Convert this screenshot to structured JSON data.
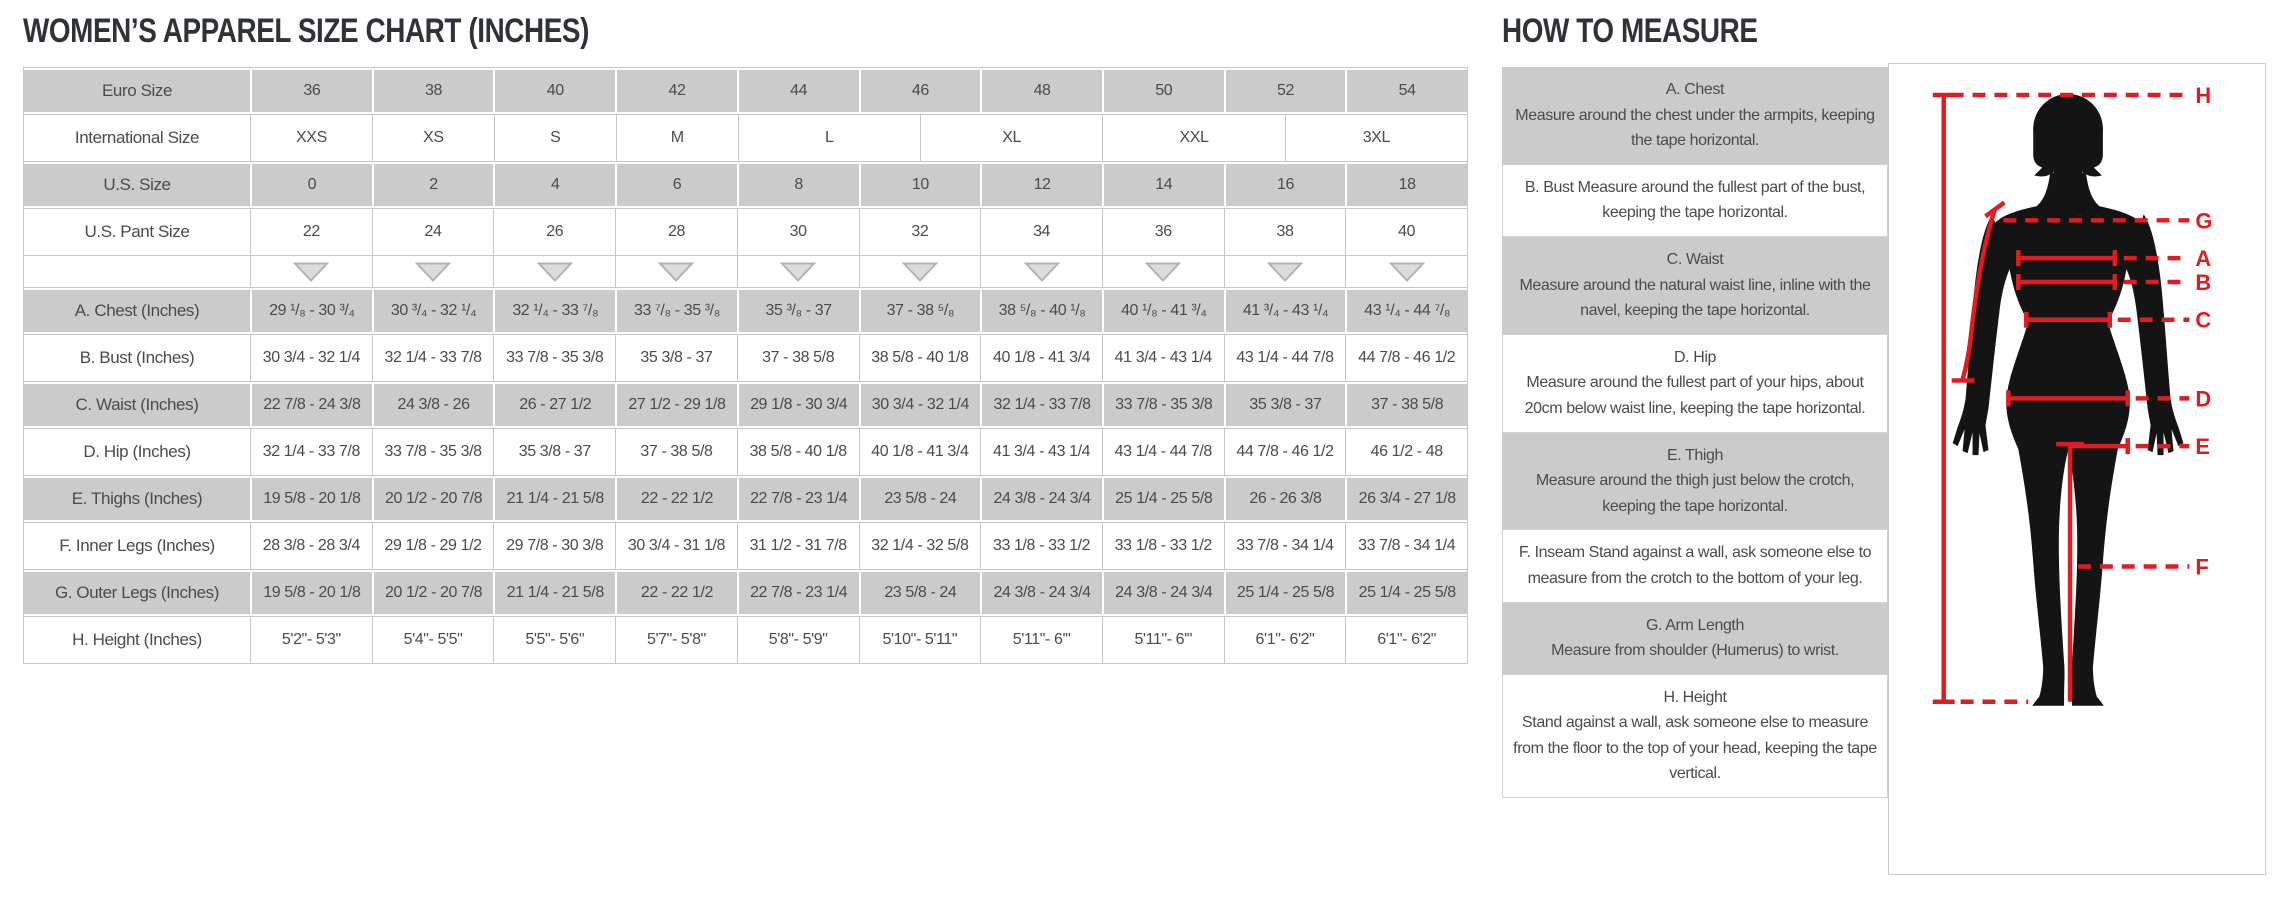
{
  "colors": {
    "row_gray": "#cbcbcb",
    "border_gray": "#c7c7c7",
    "accent_red": "#e01c23",
    "silhouette_black": "#141414",
    "text_gray": "#4b4b4b",
    "title_charcoal": "#2f3237",
    "triangle_fill": "#dcdcdc",
    "triangle_stroke": "#b3b3b3"
  },
  "size_chart": {
    "title": "WOMEN’S APPAREL SIZE CHART (INCHES)",
    "table": {
      "rows": [
        {
          "id": "euro-size",
          "label": "Euro Size",
          "shade": "gray",
          "cells": [
            "36",
            "38",
            "40",
            "42",
            "44",
            "46",
            "48",
            "50",
            "52",
            "54"
          ]
        },
        {
          "id": "international-size",
          "label": "International Size",
          "shade": "white",
          "cells": [
            "XXS",
            "XS",
            "S",
            "M",
            "L",
            "XL",
            "XXL",
            "3XL"
          ],
          "spans": [
            2,
            2,
            2,
            2,
            3,
            3,
            3,
            3
          ]
        },
        {
          "id": "us-size",
          "label": "U.S. Size",
          "shade": "gray",
          "cells": [
            "0",
            "2",
            "4",
            "6",
            "8",
            "10",
            "12",
            "14",
            "16",
            "18"
          ]
        },
        {
          "id": "us-pant-size",
          "label": "U.S. Pant Size",
          "shade": "white",
          "cells": [
            "22",
            "24",
            "26",
            "28",
            "30",
            "32",
            "34",
            "36",
            "38",
            "40"
          ]
        },
        {
          "id": "divider",
          "label": "",
          "shade": "white",
          "type": "triangles",
          "cells": [
            "",
            "",
            "",
            "",
            "",
            "",
            "",
            "",
            "",
            ""
          ]
        },
        {
          "id": "chest",
          "label": "A. Chest (Inches)",
          "shade": "gray",
          "cells": [
            "29 ¹/₈ - 30 ³/₄",
            "30 ³/₄ - 32 ¹/₄",
            "32 ¹/₄ - 33 ⁷/₈",
            "33 ⁷/₈ - 35 ³/₈",
            "35 ³/₈ - 37",
            "37 - 38 ⁵/₈",
            "38 ⁵/₈ - 40 ¹/₈",
            "40 ¹/₈ - 41 ³/₄",
            "41 ³/₄ - 43 ¹/₄",
            "43 ¹/₄ - 44 ⁷/₈"
          ]
        },
        {
          "id": "bust",
          "label": "B. Bust (Inches)",
          "shade": "white",
          "cells": [
            "30 3/4 - 32 1/4",
            "32 1/4 - 33 7/8",
            "33 7/8 - 35 3/8",
            "35 3/8 - 37",
            "37 - 38 5/8",
            "38 5/8 - 40 1/8",
            "40 1/8 - 41 3/4",
            "41 3/4 - 43 1/4",
            "43 1/4 - 44 7/8",
            "44 7/8 - 46 1/2"
          ]
        },
        {
          "id": "waist",
          "label": "C. Waist (Inches)",
          "shade": "gray",
          "cells": [
            "22 7/8 - 24 3/8",
            "24 3/8 - 26",
            "26 - 27 1/2",
            "27 1/2 - 29 1/8",
            "29 1/8 - 30 3/4",
            "30 3/4 - 32 1/4",
            "32 1/4 - 33 7/8",
            "33 7/8 - 35 3/8",
            "35 3/8 - 37",
            "37 - 38 5/8"
          ]
        },
        {
          "id": "hip",
          "label": "D. Hip (Inches)",
          "shade": "white",
          "cells": [
            "32 1/4 - 33 7/8",
            "33 7/8 - 35 3/8",
            "35 3/8 - 37",
            "37 - 38 5/8",
            "38 5/8 - 40 1/8",
            "40 1/8 - 41 3/4",
            "41 3/4 - 43 1/4",
            "43 1/4 - 44 7/8",
            "44 7/8 - 46 1/2",
            "46 1/2 - 48"
          ]
        },
        {
          "id": "thighs",
          "label": "E. Thighs (Inches)",
          "shade": "gray",
          "cells": [
            "19 5/8 - 20 1/8",
            "20 1/2 - 20 7/8",
            "21 1/4 - 21 5/8",
            "22 - 22 1/2",
            "22 7/8 - 23 1/4",
            "23 5/8 - 24",
            "24 3/8 - 24 3/4",
            "25 1/4 - 25 5/8",
            "26 - 26 3/8",
            "26 3/4 - 27 1/8"
          ]
        },
        {
          "id": "inner-legs",
          "label": "F. Inner Legs (Inches)",
          "shade": "white",
          "cells": [
            "28 3/8 - 28 3/4",
            "29 1/8 - 29 1/2",
            "29 7/8 - 30 3/8",
            "30 3/4 - 31 1/8",
            "31 1/2 - 31 7/8",
            "32 1/4 - 32 5/8",
            "33 1/8 - 33 1/2",
            "33 1/8 - 33 1/2",
            "33 7/8 - 34 1/4",
            "33 7/8 - 34 1/4"
          ]
        },
        {
          "id": "outer-legs",
          "label": "G. Outer Legs (Inches)",
          "shade": "gray",
          "cells": [
            "19 5/8 - 20 1/8",
            "20 1/2 - 20 7/8",
            "21 1/4 - 21 5/8",
            "22 - 22 1/2",
            "22 7/8 - 23 1/4",
            "23 5/8 - 24",
            "24 3/8 - 24 3/4",
            "24 3/8 - 24 3/4",
            "25 1/4 - 25 5/8",
            "25 1/4 - 25 5/8"
          ]
        },
        {
          "id": "height",
          "label": "H. Height (Inches)",
          "shade": "white",
          "cells": [
            "5'2\"- 5'3\"",
            "5'4\"- 5'5\"",
            "5'5\"- 5'6\"",
            "5'7\"- 5'8\"",
            "5'8\"- 5'9\"",
            "5'10\"- 5'11\"",
            "5'11\"- 6'\"",
            "5'11\"- 6'\"",
            "6'1\"- 6'2\"",
            "6'1\"- 6'2\""
          ]
        }
      ]
    }
  },
  "how_to_measure": {
    "title": "HOW TO MEASURE",
    "cards": [
      {
        "id": "chest",
        "shade": "gray",
        "heading": "A. Chest",
        "text": "Measure around the chest under the armpits, keeping the tape horizontal."
      },
      {
        "id": "bust",
        "shade": "white",
        "heading": "",
        "text": "B. Bust Measure around the fullest part of the bust, keeping the tape horizontal."
      },
      {
        "id": "waist",
        "shade": "gray",
        "heading": "C. Waist",
        "text": "Measure around the natural waist line, inline with the navel, keeping the tape horizontal."
      },
      {
        "id": "hip",
        "shade": "white",
        "heading": "D. Hip",
        "text": "Measure around the fullest part of your hips, about 20cm below waist line, keeping the tape horizontal."
      },
      {
        "id": "thigh",
        "shade": "gray",
        "heading": "E. Thigh",
        "text": "Measure around the thigh just below the crotch, keeping the tape horizontal."
      },
      {
        "id": "inseam",
        "shade": "white",
        "heading": "",
        "text": "F. Inseam Stand against a wall, ask someone else to measure from the crotch to the bottom of your leg."
      },
      {
        "id": "arm-length",
        "shade": "gray",
        "heading": "G. Arm Length",
        "text": "Measure from shoulder (Humerus) to wrist."
      },
      {
        "id": "height",
        "shade": "white",
        "heading": "H. Height",
        "text": "Stand against a wall, ask someone else to measure from the floor to the top of your head, keeping the tape vertical."
      }
    ],
    "diagram": {
      "labels": [
        "H",
        "G",
        "A",
        "B",
        "C",
        "D",
        "E",
        "F"
      ]
    }
  }
}
